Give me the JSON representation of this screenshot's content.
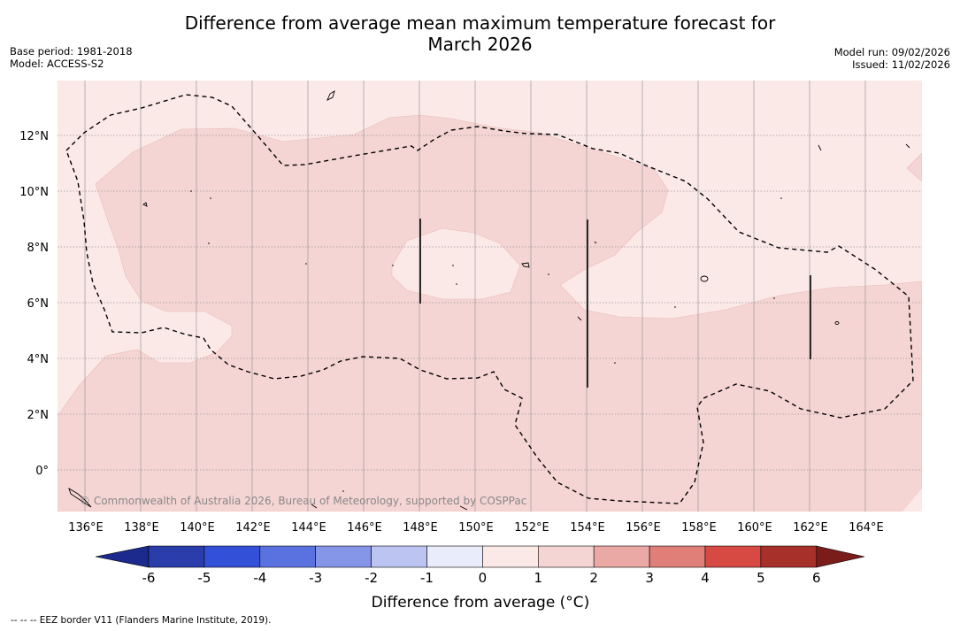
{
  "header": {
    "title_line1": "Difference from average mean maximum temperature forecast for",
    "title_line2": "March 2026",
    "base_period": "Base period: 1981-2018",
    "model": "Model: ACCESS-S2",
    "model_run": "Model run: 09/02/2026",
    "issued": "Issued: 11/02/2026"
  },
  "map": {
    "lon_range": [
      135,
      166
    ],
    "lat_range": [
      -1.5,
      14
    ],
    "lon_ticks": [
      "136°E",
      "138°E",
      "140°E",
      "142°E",
      "144°E",
      "146°E",
      "148°E",
      "150°E",
      "152°E",
      "154°E",
      "156°E",
      "158°E",
      "160°E",
      "162°E",
      "164°E"
    ],
    "lat_ticks": [
      "12°N",
      "10°N",
      "8°N",
      "6°N",
      "4°N",
      "2°N",
      "0°"
    ],
    "copyright": "© Commonwealth of Australia 2026, Bureau of Meteorology, supported by COSPPac",
    "colors": {
      "anomaly_0_1": "#fbe9e8",
      "anomaly_1_2": "#f5d5d3",
      "background": "#fbe9e8"
    }
  },
  "colorbar": {
    "title": "Difference from average (°C)",
    "labels": [
      "-6",
      "-5",
      "-4",
      "-3",
      "-2",
      "-1",
      "0",
      "1",
      "2",
      "3",
      "4",
      "5",
      "6"
    ],
    "colors": [
      "#1b2a8c",
      "#2a3dab",
      "#3350d9",
      "#5a72e0",
      "#8595e8",
      "#bcc4f2",
      "#e9ecfa",
      "#fbe9e8",
      "#f5d5d3",
      "#eaa9a4",
      "#e07f78",
      "#d64a43",
      "#a8302a",
      "#7a1c1a"
    ]
  },
  "footnote": "--  --  -- EEZ border V11 (Flanders Marine Institute, 2019)."
}
